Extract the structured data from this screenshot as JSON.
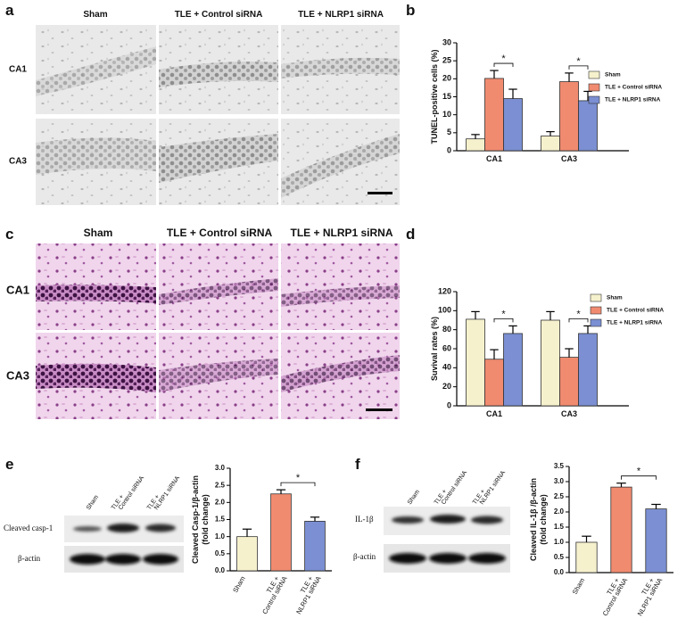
{
  "panels": {
    "a": {
      "label": "a",
      "columns": [
        "Sham",
        "TLE + Control siRNA",
        "TLE + NLRP1 siRNA"
      ],
      "rows": [
        "CA1",
        "CA3"
      ]
    },
    "c": {
      "label": "c",
      "columns": [
        "Sham",
        "TLE + Control siRNA",
        "TLE + NLRP1 siRNA"
      ],
      "rows": [
        "CA1",
        "CA3"
      ]
    },
    "e": {
      "label": "e",
      "lanes": [
        [
          "Sham"
        ],
        [
          "TLE +",
          "Control siRNA"
        ],
        [
          "TLE +",
          "NLRP1 siRNA"
        ]
      ],
      "bands": [
        "Cleaved casp-1",
        "β-actin"
      ]
    },
    "f": {
      "label": "f",
      "lanes": [
        [
          "Sham"
        ],
        [
          "TLE +",
          "Control siRNA"
        ],
        [
          "TLE +",
          "NLRP1 siRNA"
        ]
      ],
      "bands": [
        "IL-1β",
        "β-actin"
      ]
    }
  },
  "chart_data": [
    {
      "type": "bar",
      "panel": "b",
      "ylabel": [
        "TUNEL-positive cells (%)"
      ],
      "categories": [
        "CA1",
        "CA3"
      ],
      "series": [
        {
          "name": "Sham",
          "color": "#f6f1cd",
          "values": [
            3.3,
            4.1
          ],
          "errors": [
            1.2,
            1.2
          ]
        },
        {
          "name": "TLE + Control siRNA",
          "color": "#f08b70",
          "values": [
            20.1,
            19.2
          ],
          "errors": [
            2.2,
            2.4
          ]
        },
        {
          "name": "TLE + NLRP1 siRNA",
          "color": "#7b8fd2",
          "values": [
            14.5,
            13.9
          ],
          "errors": [
            2.6,
            2.6
          ]
        }
      ],
      "significance": [
        "*",
        "*"
      ],
      "ylim": [
        0,
        30
      ],
      "yticks": [
        0,
        5,
        10,
        15,
        20,
        25,
        30
      ],
      "legend": "right"
    },
    {
      "type": "bar",
      "panel": "d",
      "ylabel": [
        "Suvival rates (%)"
      ],
      "categories": [
        "CA1",
        "CA3"
      ],
      "series": [
        {
          "name": "Sham",
          "color": "#f6f1cd",
          "values": [
            91,
            90
          ],
          "errors": [
            8,
            9
          ]
        },
        {
          "name": "TLE + Control siRNA",
          "color": "#f08b70",
          "values": [
            49,
            51
          ],
          "errors": [
            10,
            9
          ]
        },
        {
          "name": "TLE + NLRP1 siRNA",
          "color": "#7b8fd2",
          "values": [
            76,
            76
          ],
          "errors": [
            8,
            8
          ]
        }
      ],
      "significance": [
        "*",
        "*"
      ],
      "ylim": [
        0,
        120
      ],
      "yticks": [
        0,
        20,
        40,
        60,
        80,
        100,
        120
      ],
      "legend": "right"
    },
    {
      "type": "bar",
      "ylabel": [
        "Cleaved Casp-1/β-actin",
        "(fold change)"
      ],
      "categories": [
        [
          "Sham"
        ],
        [
          "TLE +",
          "Control siRNA"
        ],
        [
          "TLE +",
          "NLRP1 siRNA"
        ]
      ],
      "values": [
        1.0,
        2.25,
        1.45
      ],
      "errors": [
        0.22,
        0.12,
        0.12
      ],
      "colors": [
        "#f6f1cd",
        "#f08b70",
        "#7b8fd2"
      ],
      "significance": "*",
      "ylim": [
        0,
        3
      ],
      "yticks": [
        {
          "value": 0,
          "label": "0.0"
        },
        {
          "value": 0.5,
          "label": "0.5"
        },
        {
          "value": 1,
          "label": "1.0"
        },
        {
          "value": 1.5,
          "label": "1.5"
        },
        {
          "value": 2,
          "label": "2.0"
        },
        {
          "value": 2.5,
          "label": "2.5"
        },
        {
          "value": 3,
          "label": "3.0"
        }
      ]
    },
    {
      "type": "bar",
      "ylabel": [
        "Cleaved IL-1β /β-actin",
        "(fold change)"
      ],
      "categories": [
        [
          "Sham"
        ],
        [
          "TLE +",
          "Control siRNA"
        ],
        [
          "TLE +",
          "NLRP1 siRNA"
        ]
      ],
      "values": [
        1.0,
        2.82,
        2.1
      ],
      "errors": [
        0.2,
        0.13,
        0.15
      ],
      "colors": [
        "#f6f1cd",
        "#f08b70",
        "#7b8fd2"
      ],
      "significance": "*",
      "ylim": [
        0,
        3.5
      ],
      "yticks": [
        {
          "value": 0,
          "label": "0.0"
        },
        {
          "value": 0.5,
          "label": "0.5"
        },
        {
          "value": 1,
          "label": "1.0"
        },
        {
          "value": 1.5,
          "label": "1.5"
        },
        {
          "value": 2,
          "label": "2.0"
        },
        {
          "value": 2.5,
          "label": "2.5"
        },
        {
          "value": 3,
          "label": "3.0"
        },
        {
          "value": 3.5,
          "label": "3.5"
        }
      ]
    }
  ]
}
